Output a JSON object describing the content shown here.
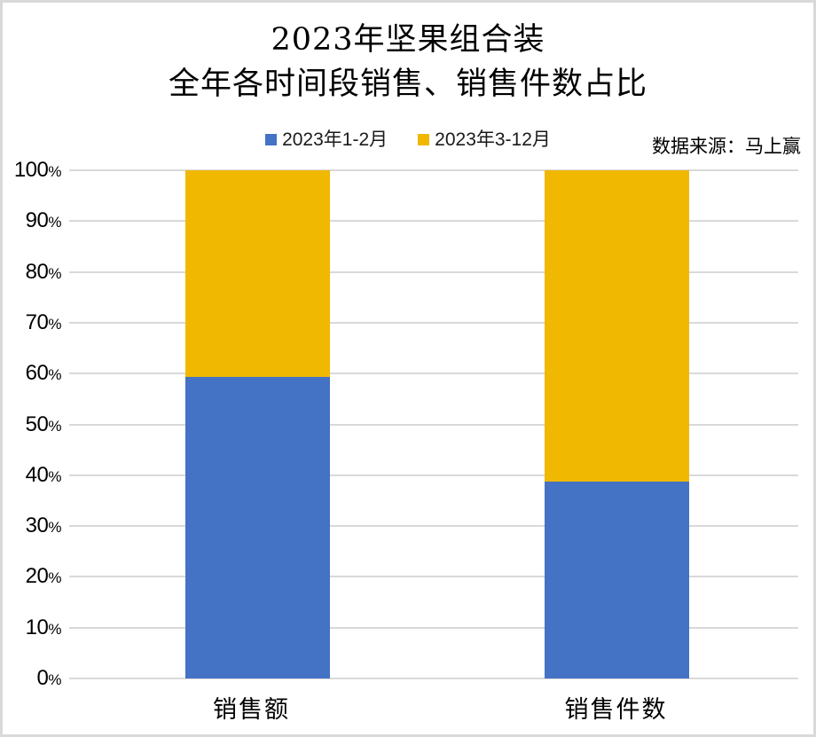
{
  "title": {
    "line1": "2023年坚果组合装",
    "line2": "全年各时间段销售、销售件数占比"
  },
  "legend": {
    "items": [
      {
        "label": "2023年1-2月",
        "color": "#4472C4"
      },
      {
        "label": "2023年3-12月",
        "color": "#F0B800"
      }
    ]
  },
  "source_note": "数据来源：马上赢",
  "y_axis": {
    "tick_values": [
      "100",
      "90",
      "80",
      "70",
      "60",
      "50",
      "40",
      "30",
      "20",
      "10",
      "0"
    ],
    "percent_sign": "%"
  },
  "x_axis": {
    "categories": [
      "销售额",
      "销售件数"
    ]
  },
  "colors": {
    "series_blue": "#4472C4",
    "series_gold": "#F0B800",
    "gridline": "#D9D9D9",
    "border": "#D9D9D9",
    "background": "#FFFFFF"
  },
  "chart_data": {
    "type": "bar",
    "subtype": "100%-stacked-column",
    "title": "2023年坚果组合装 全年各时间段销售、销售件数占比",
    "categories": [
      "销售额",
      "销售件数"
    ],
    "series": [
      {
        "name": "2023年1-2月",
        "color": "#4472C4",
        "values": [
          59.3,
          38.7
        ]
      },
      {
        "name": "2023年3-12月",
        "color": "#F0B800",
        "values": [
          40.7,
          61.3
        ]
      }
    ],
    "ylabel": "",
    "ylim": [
      0,
      100
    ],
    "y_tick_step": 10,
    "grid": true,
    "legend_position": "top",
    "source": "数据来源：马上赢"
  }
}
